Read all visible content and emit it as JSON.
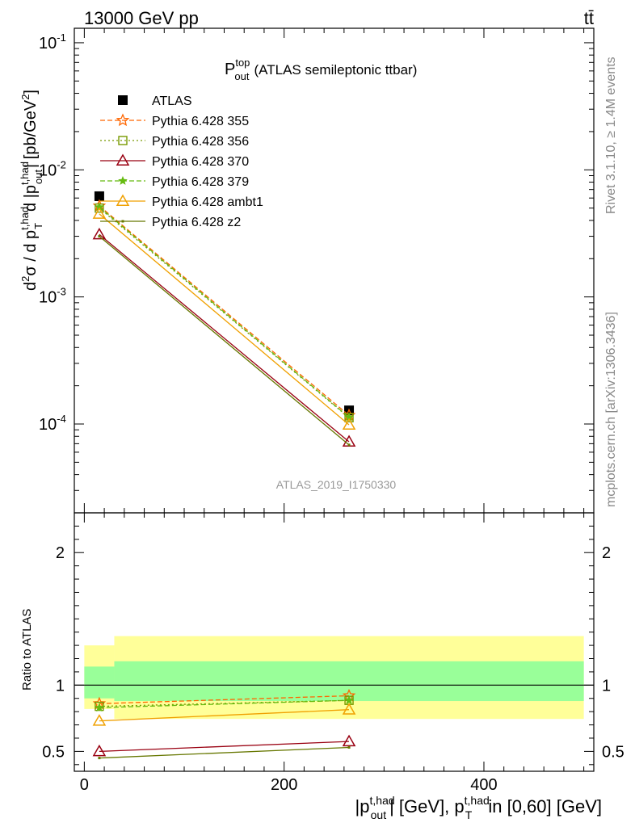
{
  "header": {
    "energy_label": "13000 GeV pp",
    "process_label": "tt̄"
  },
  "side_labels": {
    "rivet": "Rivet 3.1.10, ≥ 1.4M events",
    "mcplots": "mcplots.cern.ch [arXiv:1306.3436]"
  },
  "plot_title": {
    "main": "P",
    "sup": "top",
    "sub": "out",
    "rest": "(ATLAS semileptonic ttbar)"
  },
  "analysis_label": "ATLAS_2019_I1750330",
  "y_label_main": {
    "p1": "d",
    "p1sup": "2",
    "p2": "σ / d p",
    "p2sup": "t,had",
    "p2sub": "T",
    "p3": "d |p",
    "p3sup": "t,had",
    "p3sub": "out",
    "p4": "| [pb/GeV",
    "p4sup": "2",
    "p5": "]"
  },
  "y_label_ratio": "Ratio to ATLAS",
  "x_label": {
    "p1": "|p",
    "p1sup": "t,had",
    "p1sub": "out",
    "p2": "| [GeV], p",
    "p2sup": "t,had",
    "p2sub": "T",
    "p3": "in [0,60] [GeV]"
  },
  "chart_data": [
    {
      "type": "scatter",
      "panel": "main",
      "y_scale": "log",
      "xlim": [
        -10,
        510
      ],
      "ylim": [
        2e-05,
        0.13
      ],
      "y_ticks": [
        {
          "exp": "-4",
          "value": 0.0001
        },
        {
          "exp": "-3",
          "value": 0.001
        },
        {
          "exp": "-2",
          "value": 0.01
        },
        {
          "exp": "-1",
          "value": 0.1
        }
      ],
      "x": [
        15,
        265
      ],
      "series": [
        {
          "name": "ATLAS",
          "color": "#000000",
          "marker": "square",
          "dash": "none",
          "values": [
            0.0062,
            0.000128
          ]
        },
        {
          "name": "Pythia 6.428 355",
          "color": "#ff6600",
          "marker": "star-open",
          "dash": "6,3",
          "values": [
            0.0052,
            0.000117
          ]
        },
        {
          "name": "Pythia 6.428 356",
          "color": "#779900",
          "marker": "square-open",
          "dash": "2,3",
          "values": [
            0.005,
            0.000112
          ]
        },
        {
          "name": "Pythia 6.428 370",
          "color": "#990011",
          "marker": "triangle-open",
          "dash": "none",
          "values": [
            0.0031,
            7.25e-05
          ]
        },
        {
          "name": "Pythia 6.428 379",
          "color": "#66bb11",
          "marker": "star-filled",
          "dash": "6,3",
          "values": [
            0.0051,
            0.000113
          ]
        },
        {
          "name": "Pythia 6.428 ambt1",
          "color": "#f0a000",
          "marker": "triangle-open",
          "dash": "none",
          "values": [
            0.0045,
            9.85e-05
          ]
        },
        {
          "name": "Pythia 6.428 z2",
          "color": "#667700",
          "marker": "none",
          "dash": "none",
          "values": [
            0.003,
            6.85e-05
          ]
        }
      ]
    },
    {
      "type": "line",
      "panel": "ratio",
      "xlim": [
        -10,
        510
      ],
      "ylim": [
        0.35,
        2.3
      ],
      "x_ticks": [
        "0",
        "200",
        "400"
      ],
      "y_ticks": [
        "0.5",
        "1",
        "2"
      ],
      "x": [
        15,
        265
      ],
      "bands": [
        {
          "name": "total",
          "color": "#ffff99",
          "segments": [
            {
              "x_from": 0,
              "x_to": 30,
              "low": 0.82,
              "high": 1.3
            },
            {
              "x_from": 30,
              "x_to": 500,
              "low": 0.745,
              "high": 1.37
            }
          ]
        },
        {
          "name": "stat",
          "color": "#99ff99",
          "segments": [
            {
              "x_from": 0,
              "x_to": 30,
              "low": 0.9,
              "high": 1.14
            },
            {
              "x_from": 30,
              "x_to": 500,
              "low": 0.88,
              "high": 1.18
            }
          ]
        }
      ],
      "series": [
        {
          "name": "Pythia 6.428 355",
          "color": "#ff6600",
          "marker": "star-open",
          "dash": "6,3",
          "values": [
            0.86,
            0.92
          ]
        },
        {
          "name": "Pythia 6.428 356",
          "color": "#779900",
          "marker": "square-open",
          "dash": "2,3",
          "values": [
            0.84,
            0.885
          ]
        },
        {
          "name": "Pythia 6.428 370",
          "color": "#990011",
          "marker": "triangle-open",
          "dash": "none",
          "values": [
            0.5,
            0.575
          ]
        },
        {
          "name": "Pythia 6.428 379",
          "color": "#66bb11",
          "marker": "star-filled",
          "dash": "6,3",
          "values": [
            0.83,
            0.885
          ]
        },
        {
          "name": "Pythia 6.428 ambt1",
          "color": "#f0a000",
          "marker": "triangle-open",
          "dash": "none",
          "values": [
            0.73,
            0.815
          ]
        },
        {
          "name": "Pythia 6.428 z2",
          "color": "#667700",
          "marker": "none",
          "dash": "none",
          "values": [
            0.45,
            0.53
          ]
        }
      ]
    }
  ]
}
